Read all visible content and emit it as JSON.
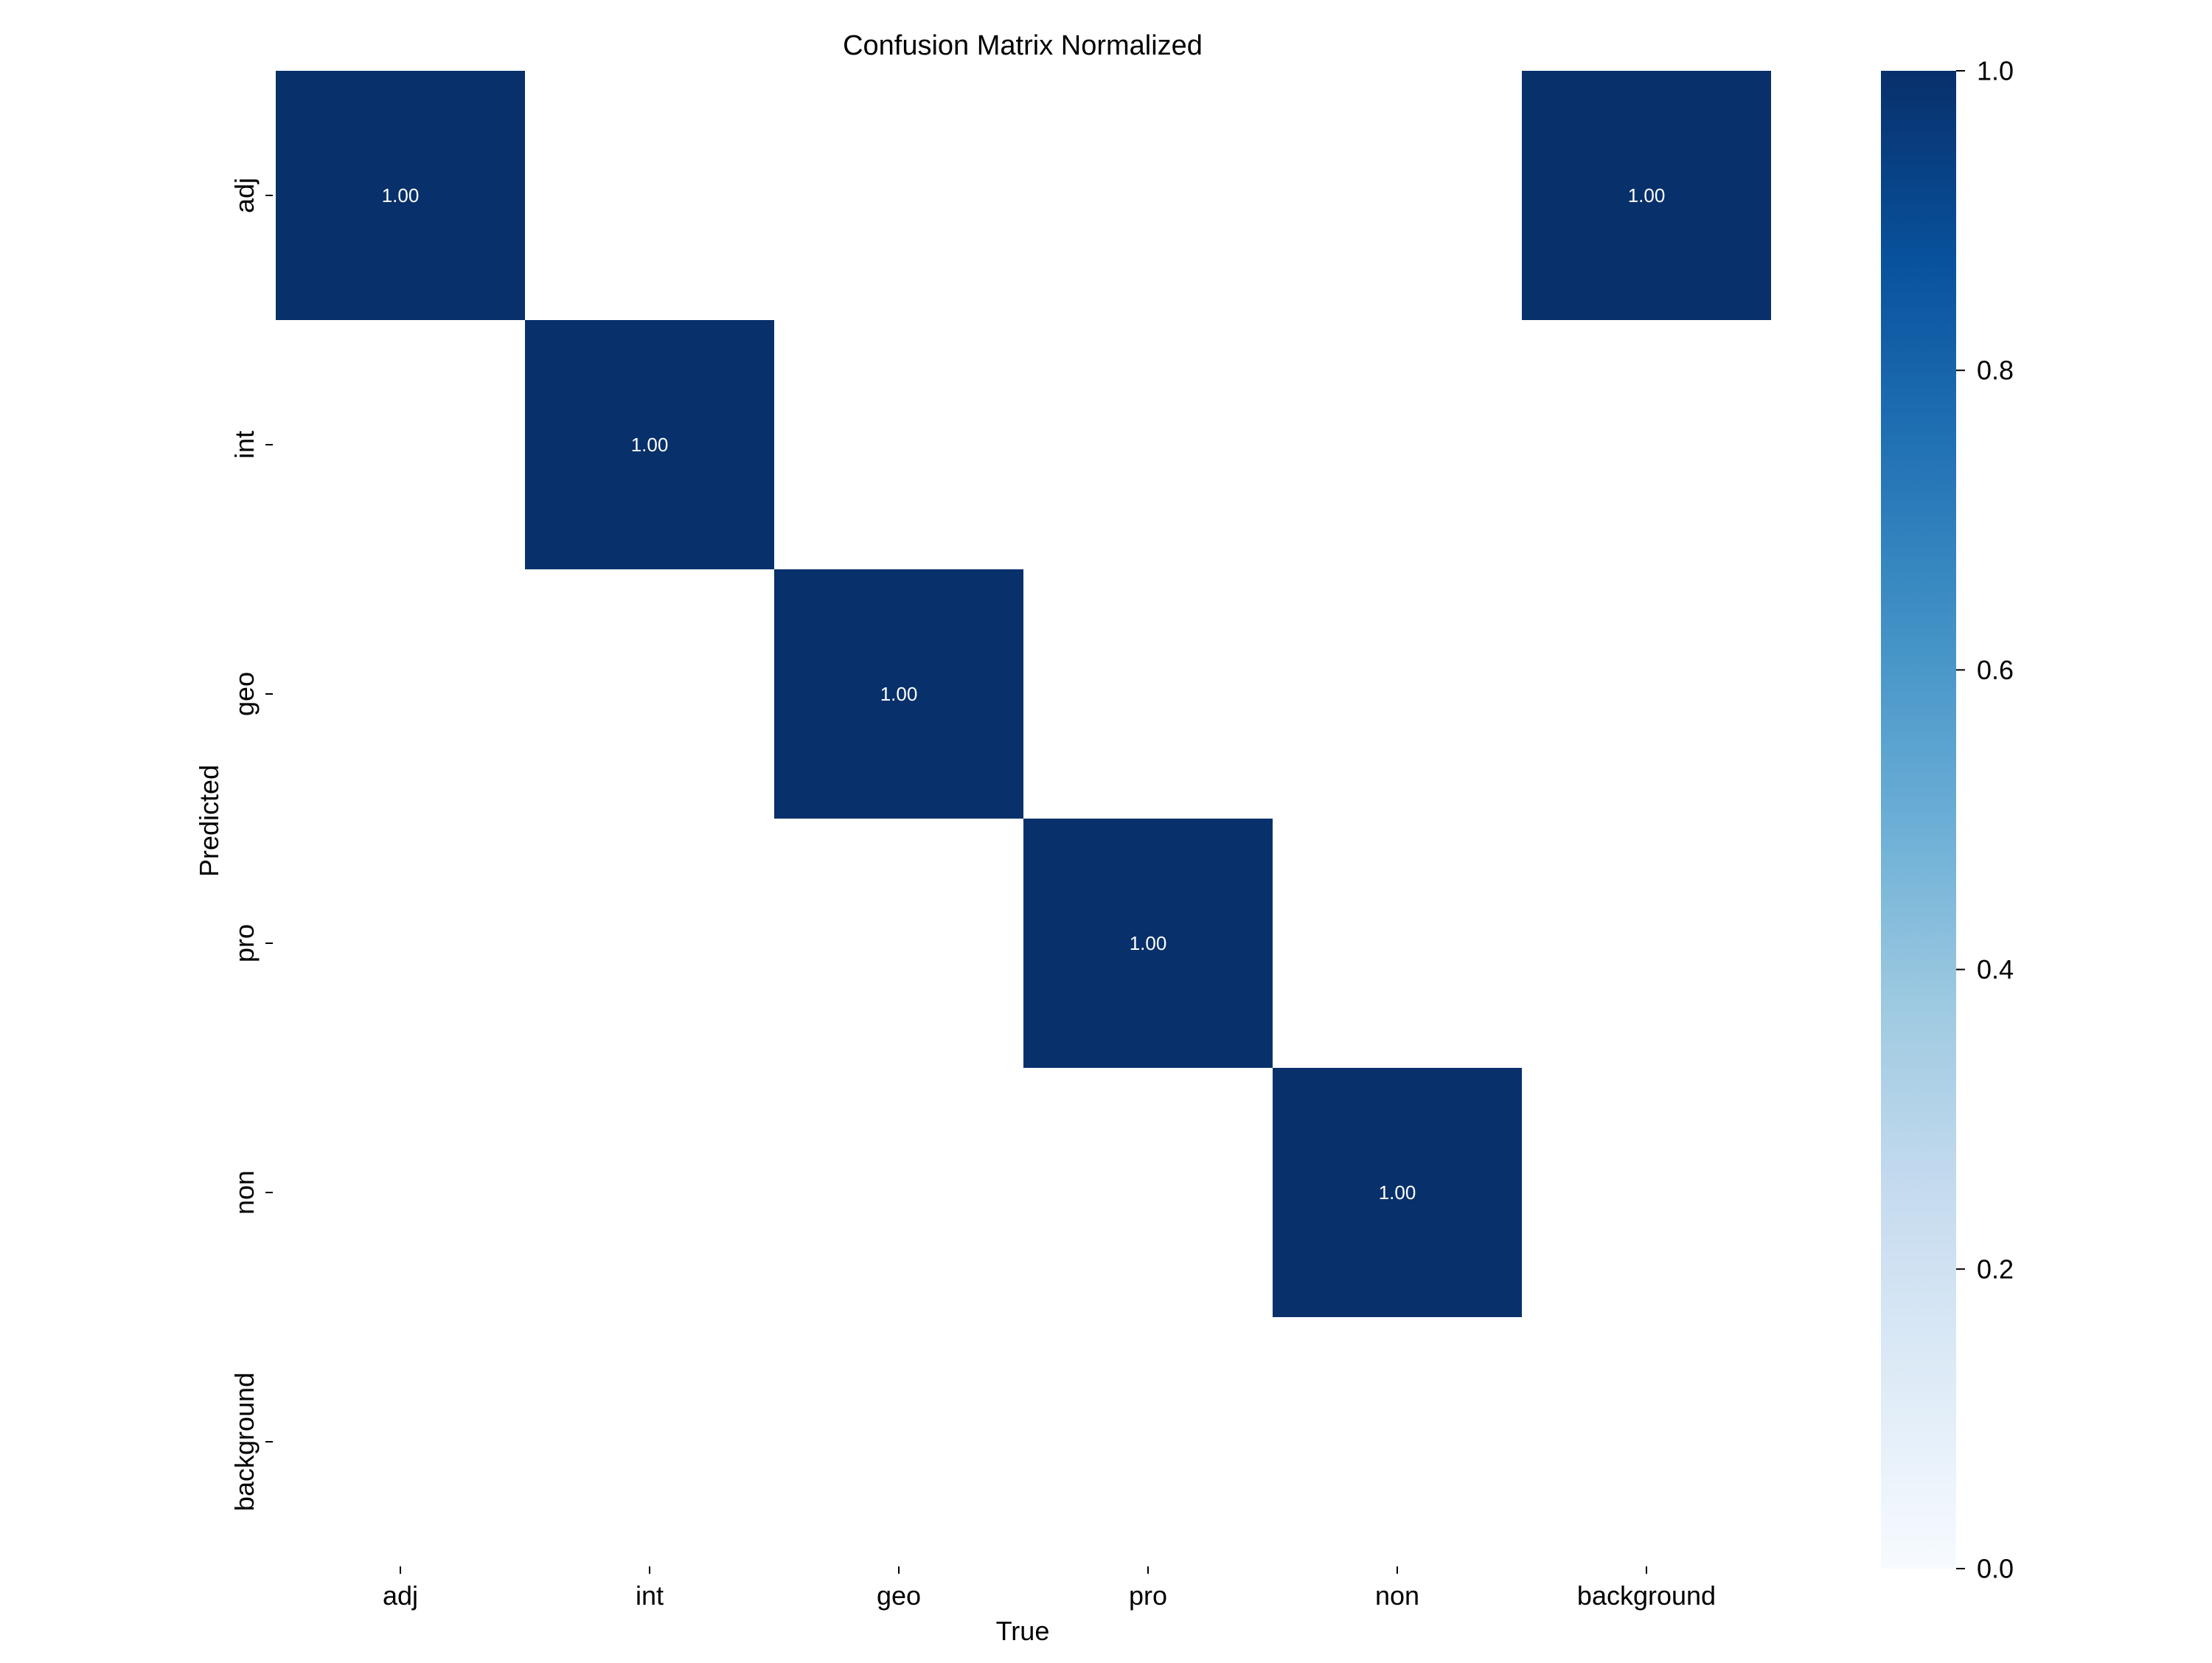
{
  "chart_data": {
    "type": "heatmap",
    "title": "Confusion Matrix Normalized",
    "xlabel": "True",
    "ylabel": "Predicted",
    "x_categories": [
      "adj",
      "int",
      "geo",
      "pro",
      "non",
      "background"
    ],
    "y_categories": [
      "adj",
      "int",
      "geo",
      "pro",
      "non",
      "background"
    ],
    "values": [
      [
        1.0,
        null,
        null,
        null,
        null,
        1.0
      ],
      [
        null,
        1.0,
        null,
        null,
        null,
        null
      ],
      [
        null,
        null,
        1.0,
        null,
        null,
        null
      ],
      [
        null,
        null,
        null,
        1.0,
        null,
        null
      ],
      [
        null,
        null,
        null,
        null,
        1.0,
        null
      ],
      [
        null,
        null,
        null,
        null,
        null,
        null
      ]
    ],
    "value_format": "2 decimals",
    "colorbar": {
      "range": [
        0.0,
        1.0
      ],
      "ticks": [
        0.0,
        0.2,
        0.4,
        0.6,
        0.8,
        1.0
      ],
      "tick_labels": [
        "0.0",
        "0.2",
        "0.4",
        "0.6",
        "0.8",
        "1.0"
      ],
      "colormap": "Blues",
      "color_low": "#f7fbff",
      "color_high": "#08306b"
    },
    "cell_text_color": "#ffffff",
    "grid": false
  }
}
